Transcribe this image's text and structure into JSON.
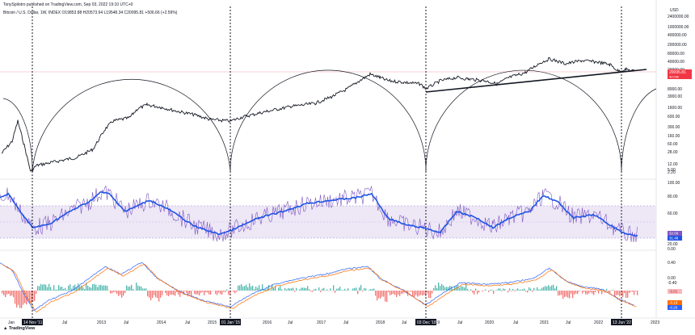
{
  "header": {
    "published": "TonySpilotro published on TradingView.com, Sep 03, 2022 19:10 UTC+0",
    "symbol": "Bitcoin / U.S. Dollar, 1W, INDEX",
    "ohlc": "O19853.88 H20573.64 L19548.34 C20095.81 +506.66 (+2.59%)"
  },
  "branding": {
    "logo": "TradingView"
  },
  "price_axis": {
    "currency": "USD",
    "labels": [
      "2400000.00",
      "1000000.00",
      "400000.00",
      "200000.00",
      "80000.00",
      "40000.00",
      "20000.00",
      "8000.00",
      "3000.00",
      "1600.00",
      "600.00",
      "300.00",
      "160.00",
      "60.00",
      "28.00",
      "12.00",
      "5.00",
      "2.20"
    ],
    "current_price": "20095.81",
    "countdown": "4d 03h"
  },
  "rsi_axis": {
    "labels": [
      "100.00",
      "80.00",
      "60.00",
      "20.00",
      "0.00"
    ],
    "value_a": "32.69",
    "value_b": "31.48"
  },
  "macd_axis": {
    "labels": [
      "0.40",
      "0.00",
      "-0.40"
    ],
    "hist": "-0.01",
    "signal": "-0.19",
    "macd": "-0.20"
  },
  "time_axis": {
    "labels": [
      "Jan",
      "Jul",
      "2013",
      "Jul",
      "2014",
      "Jul",
      "2015",
      "Jul",
      "2016",
      "Jul",
      "2017",
      "Jul",
      "2018",
      "Jul",
      "2019",
      "Jul",
      "2020",
      "Jul",
      "2021",
      "Jul",
      "2022",
      "Jul",
      "2023"
    ],
    "markers": [
      "14 Nov '11",
      "01 Jan '15",
      "03 Dec '18",
      "13 Jun '22"
    ]
  },
  "colors": {
    "rsi_fill": "#ede7f6",
    "rsi_line": "#1e53e5",
    "rsi_thin": "#7e57c2",
    "macd_line": "#2962ff",
    "signal_line": "#ff6d00",
    "hist_pos": "#26a69a",
    "hist_neg": "#ef5350",
    "price_tag": "#f23645"
  }
}
